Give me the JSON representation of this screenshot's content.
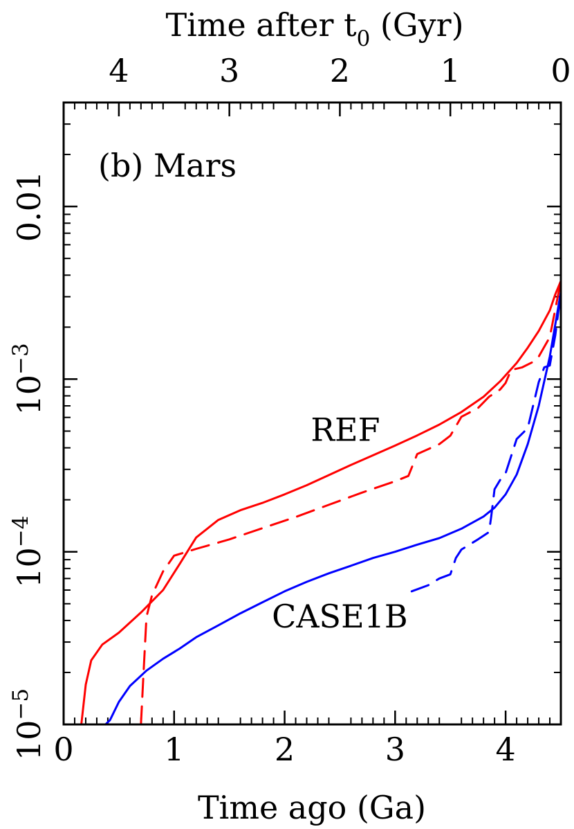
{
  "chart_data": {
    "type": "line",
    "panel_label": "(b) Mars",
    "xlabel": "Time ago (Ga)",
    "x2label_main": "Time after t",
    "x2label_sub": "0",
    "x2label_unit": " (Gyr)",
    "ylabel": "",
    "xlim": [
      0,
      4.5
    ],
    "ylim": [
      1e-05,
      0.04
    ],
    "yscale": "log",
    "grid": false,
    "x_ticks": [
      {
        "value": 0,
        "label": "0"
      },
      {
        "value": 1,
        "label": "1"
      },
      {
        "value": 2,
        "label": "2"
      },
      {
        "value": 3,
        "label": "3"
      },
      {
        "value": 4,
        "label": "4"
      }
    ],
    "x2_ticks": [
      {
        "value": 0.5,
        "label": "4"
      },
      {
        "value": 1.5,
        "label": "3"
      },
      {
        "value": 2.5,
        "label": "2"
      },
      {
        "value": 3.5,
        "label": "1"
      },
      {
        "value": 4.5,
        "label": "0"
      }
    ],
    "y_ticks": [
      {
        "value": 1e-05,
        "base": "10",
        "exp": "−5",
        "label": ""
      },
      {
        "value": 0.0001,
        "base": "10",
        "exp": "−4",
        "label": ""
      },
      {
        "value": 0.001,
        "base": "10",
        "exp": "−3",
        "label": ""
      },
      {
        "value": 0.01,
        "base": "",
        "exp": "",
        "label": "0.01"
      }
    ],
    "annotations": [
      {
        "text": "REF",
        "x": 2.55,
        "y": 0.00044
      },
      {
        "text": "CASE1B",
        "x": 2.5,
        "y": 3.65e-05
      }
    ],
    "series": [
      {
        "group": "REF",
        "style": "solid",
        "color": "#ff0000",
        "x": [
          0.16,
          0.2,
          0.25,
          0.35,
          0.5,
          0.7,
          0.9,
          1.05,
          1.2,
          1.4,
          1.6,
          1.8,
          2.0,
          2.2,
          2.4,
          2.6,
          2.8,
          3.0,
          3.2,
          3.4,
          3.6,
          3.8,
          3.95,
          4.1,
          4.2,
          4.3,
          4.4,
          4.45,
          4.5
        ],
        "y": [
          1e-05,
          1.7e-05,
          2.35e-05,
          2.9e-05,
          3.4e-05,
          4.45e-05,
          6e-05,
          8.5e-05,
          0.000121,
          0.000153,
          0.000174,
          0.000192,
          0.000215,
          0.000243,
          0.000278,
          0.000318,
          0.000362,
          0.000412,
          0.000472,
          0.000545,
          0.000645,
          0.00079,
          0.00097,
          0.00124,
          0.00152,
          0.0019,
          0.0025,
          0.0031,
          0.0037
        ]
      },
      {
        "group": "REF",
        "style": "dashed",
        "color": "#ff0000",
        "x": [
          0.7,
          0.72,
          0.75,
          0.8,
          0.9,
          1.0,
          1.2,
          1.5,
          1.8,
          2.1,
          2.4,
          2.7,
          3.0,
          3.12,
          3.2,
          3.4,
          3.5,
          3.6,
          3.75,
          3.85,
          3.95,
          4.0,
          4.05,
          4.15,
          4.25,
          4.3,
          4.4,
          4.5
        ],
        "y": [
          1e-05,
          1.8e-05,
          4.2e-05,
          5.6e-05,
          7.7e-05,
          9.5e-05,
          0.000104,
          0.000118,
          0.000137,
          0.000159,
          0.000187,
          0.00022,
          0.000256,
          0.000275,
          0.000368,
          0.00042,
          0.00047,
          0.000605,
          0.00068,
          0.00079,
          0.00087,
          0.00095,
          0.00113,
          0.00117,
          0.00126,
          0.00135,
          0.00175,
          0.0037
        ]
      },
      {
        "group": "CASE1B",
        "style": "solid",
        "color": "#0000ff",
        "x": [
          0.38,
          0.42,
          0.5,
          0.6,
          0.75,
          0.9,
          1.05,
          1.2,
          1.4,
          1.6,
          1.8,
          2.0,
          2.2,
          2.4,
          2.6,
          2.8,
          3.0,
          3.2,
          3.4,
          3.6,
          3.8,
          3.9,
          4.0,
          4.1,
          4.2,
          4.3,
          4.4,
          4.5
        ],
        "y": [
          1e-05,
          1.06e-05,
          1.35e-05,
          1.67e-05,
          2.05e-05,
          2.4e-05,
          2.75e-05,
          3.2e-05,
          3.75e-05,
          4.4e-05,
          5.1e-05,
          5.9e-05,
          6.7e-05,
          7.5e-05,
          8.3e-05,
          9.2e-05,
          0.0001,
          0.00011,
          0.00012,
          0.000136,
          0.00016,
          0.00018,
          0.000215,
          0.00028,
          0.00042,
          0.0007,
          0.00135,
          0.0032
        ]
      },
      {
        "group": "CASE1B",
        "style": "dashed",
        "color": "#0000ff",
        "x": [
          3.15,
          3.3,
          3.4,
          3.5,
          3.55,
          3.6,
          3.75,
          3.85,
          3.87,
          3.9,
          3.95,
          4.0,
          4.1,
          4.2,
          4.3,
          4.35,
          4.4,
          4.45,
          4.5
        ],
        "y": [
          5.9e-05,
          6.4e-05,
          7e-05,
          7.4e-05,
          9.2e-05,
          0.000103,
          0.000118,
          0.00013,
          0.00016,
          0.00023,
          0.00026,
          0.000285,
          0.00045,
          0.00052,
          0.00096,
          0.00117,
          0.0012,
          0.0018,
          0.0032
        ]
      }
    ]
  }
}
